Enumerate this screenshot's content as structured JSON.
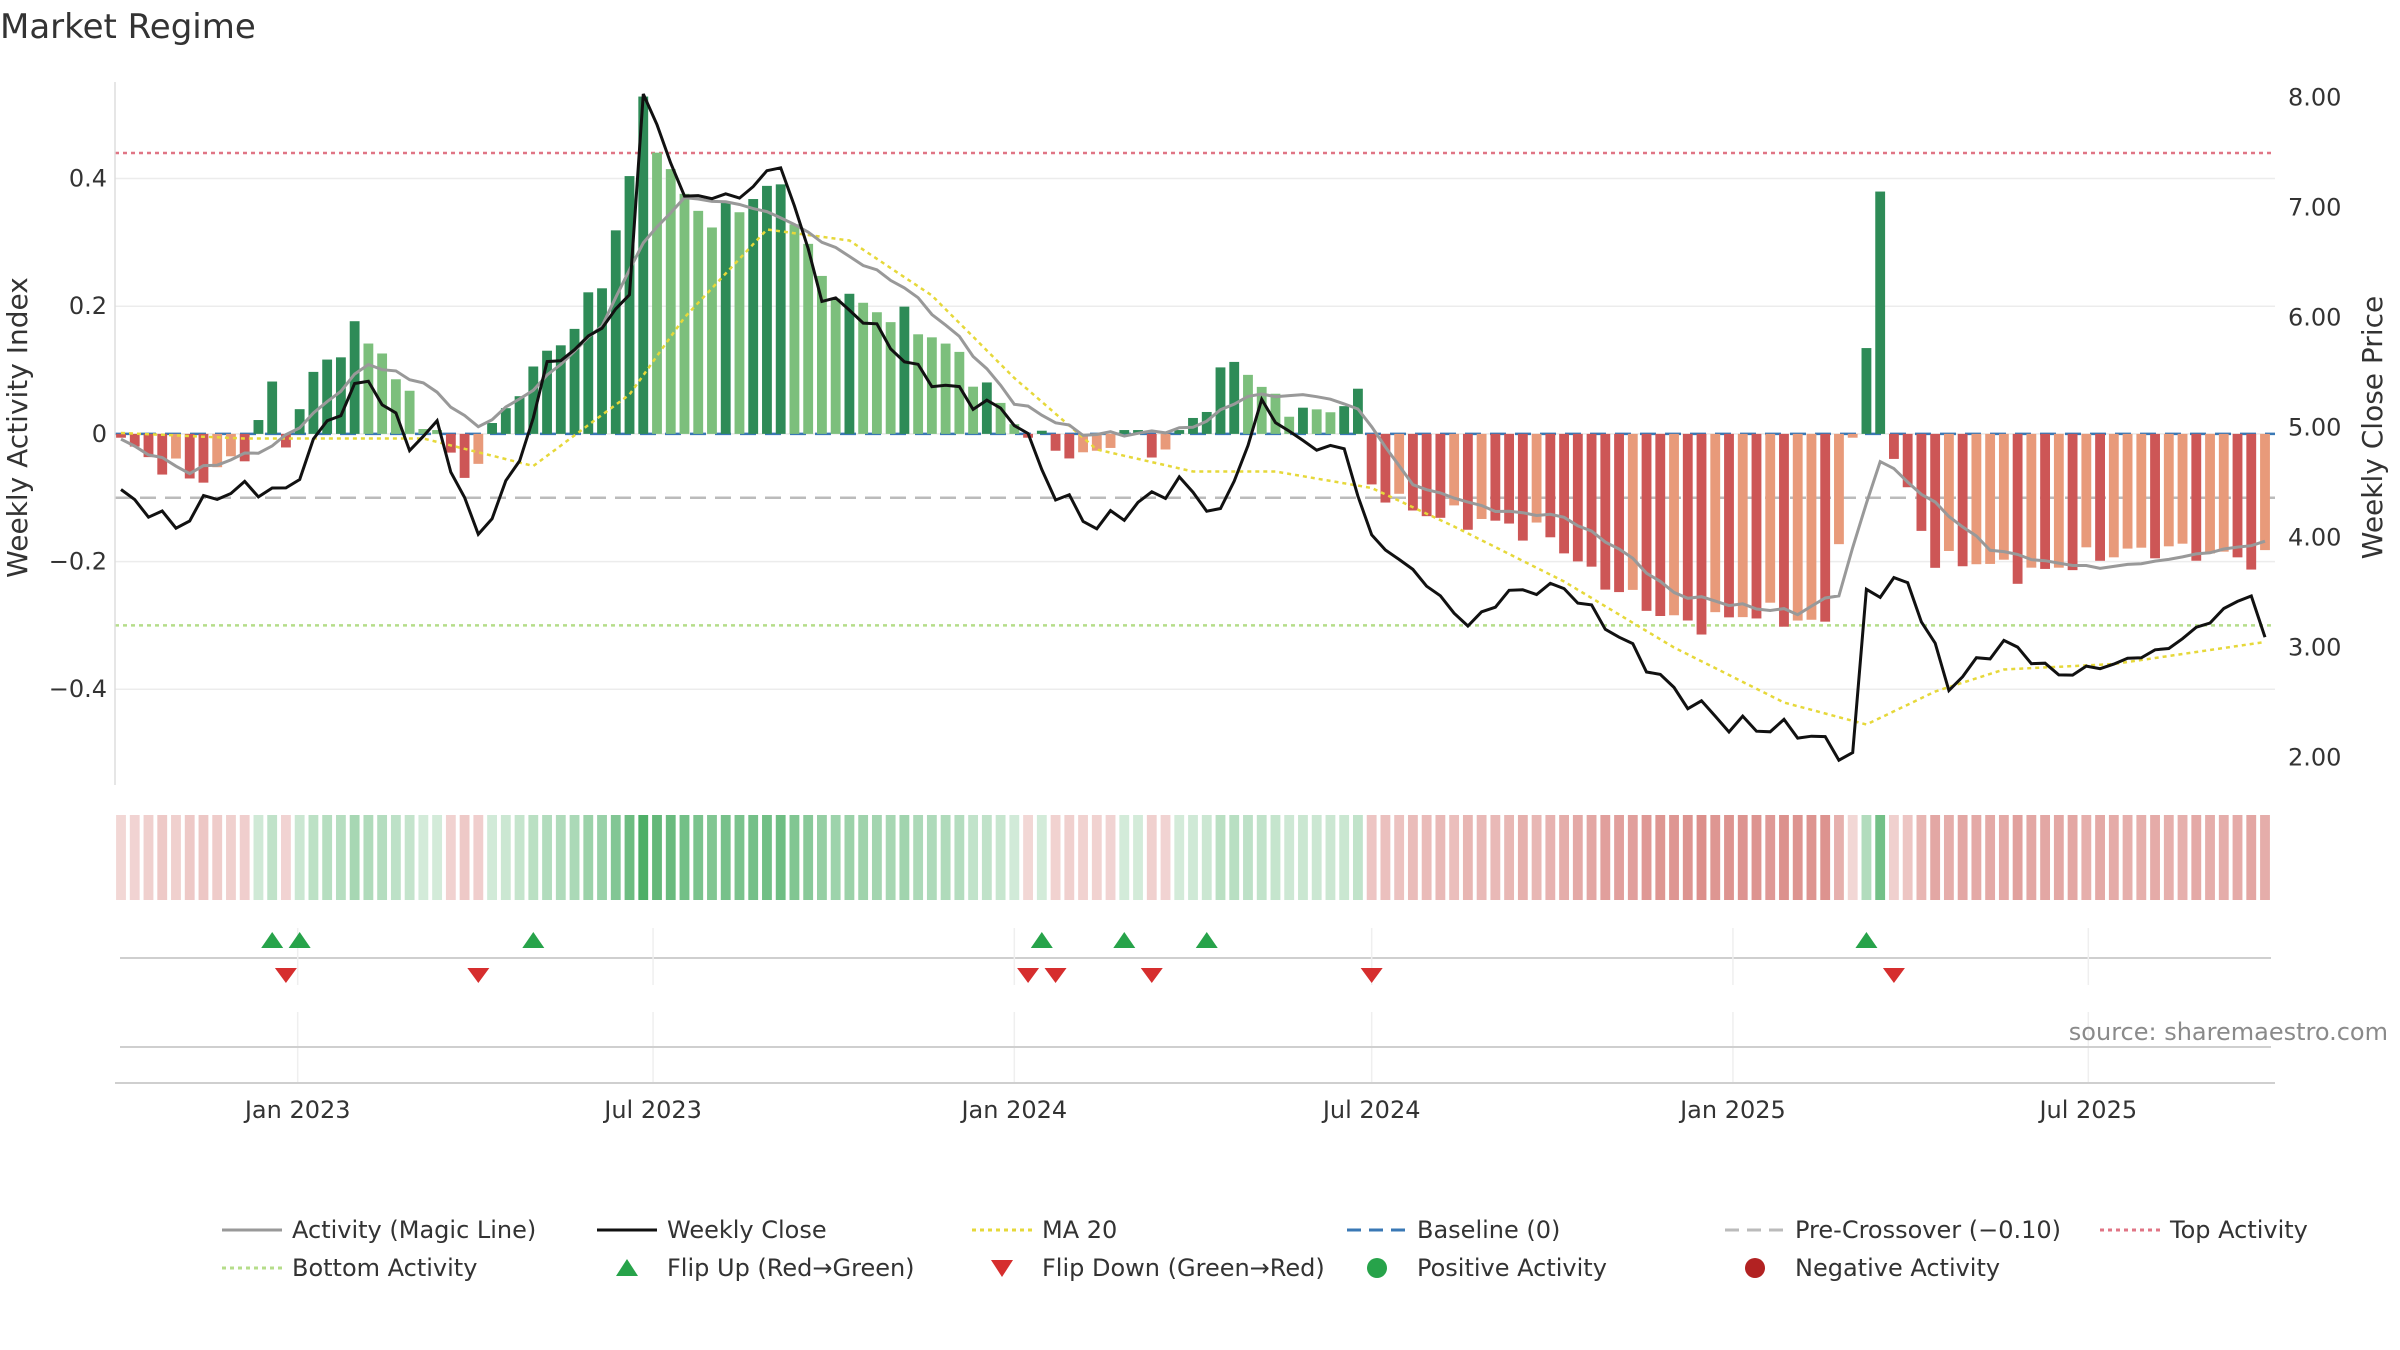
{
  "chart_data": {
    "type": "bar",
    "title": "Market Regime",
    "ylabel_left": "Weekly Activity Index",
    "ylabel_right": "Weekly Close Price",
    "ylim_left": [
      -0.55,
      0.57
    ],
    "ylim_right": [
      1.75,
      8.25
    ],
    "yticks_left": [
      0.4,
      0.2,
      0,
      -0.2,
      -0.4
    ],
    "yticks_left_labels": [
      "0.4",
      "0.2",
      "0",
      "−0.2",
      "−0.4"
    ],
    "yticks_right": [
      8.0,
      7.0,
      6.0,
      5.0,
      4.0,
      3.0,
      2.0
    ],
    "yticks_right_labels": [
      "8.00",
      "7.00",
      "6.00",
      "5.00",
      "4.00",
      "3.00",
      "2.00"
    ],
    "x_start": "2022-10-03",
    "x_end": "2025-09-29",
    "xticks": [
      "2023-01-01",
      "2023-07-01",
      "2024-01-01",
      "2024-07-01",
      "2025-01-01",
      "2025-07-01"
    ],
    "xtick_labels": [
      "Jan 2023",
      "Jul 2023",
      "Jan 2024",
      "Jul 2024",
      "Jan 2025",
      "Jul 2025"
    ],
    "reference_lines": {
      "top_activity": 0.44,
      "bottom_activity": -0.3,
      "pre_crossover": -0.1,
      "baseline": 0
    },
    "activity_keypoints": [
      [
        "2022-10-03",
        -0.01
      ],
      [
        "2022-10-24",
        -0.05
      ],
      [
        "2022-11-14",
        -0.07
      ],
      [
        "2022-12-05",
        -0.03
      ],
      [
        "2022-12-19",
        0.07
      ],
      [
        "2022-12-26",
        -0.01
      ],
      [
        "2023-01-09",
        0.09
      ],
      [
        "2023-01-30",
        0.16
      ],
      [
        "2023-02-13",
        0.13
      ],
      [
        "2023-02-27",
        0.05
      ],
      [
        "2023-03-13",
        0.0
      ],
      [
        "2023-03-27",
        -0.07
      ],
      [
        "2023-04-17",
        0.04
      ],
      [
        "2023-05-01",
        0.1
      ],
      [
        "2023-05-22",
        0.17
      ],
      [
        "2023-06-05",
        0.24
      ],
      [
        "2023-06-19",
        0.4
      ],
      [
        "2023-06-26",
        0.52
      ],
      [
        "2023-07-10",
        0.4
      ],
      [
        "2023-07-31",
        0.33
      ],
      [
        "2023-08-14",
        0.36
      ],
      [
        "2023-09-04",
        0.39
      ],
      [
        "2023-09-25",
        0.24
      ],
      [
        "2023-10-16",
        0.2
      ],
      [
        "2023-11-06",
        0.18
      ],
      [
        "2023-11-27",
        0.14
      ],
      [
        "2023-12-18",
        0.07
      ],
      [
        "2024-01-01",
        0.02
      ],
      [
        "2024-01-15",
        -0.01
      ],
      [
        "2024-02-05",
        -0.04
      ],
      [
        "2024-02-26",
        0.0
      ],
      [
        "2024-03-18",
        -0.03
      ],
      [
        "2024-04-08",
        0.05
      ],
      [
        "2024-04-22",
        0.12
      ],
      [
        "2024-05-13",
        0.05
      ],
      [
        "2024-06-03",
        0.03
      ],
      [
        "2024-06-24",
        0.06
      ],
      [
        "2024-07-01",
        -0.08
      ],
      [
        "2024-07-22",
        -0.12
      ],
      [
        "2024-08-12",
        -0.13
      ],
      [
        "2024-09-02",
        -0.14
      ],
      [
        "2024-09-30",
        -0.16
      ],
      [
        "2024-10-21",
        -0.22
      ],
      [
        "2024-11-18",
        -0.27
      ],
      [
        "2024-12-09",
        -0.3
      ],
      [
        "2025-01-13",
        -0.28
      ],
      [
        "2025-02-17",
        -0.3
      ],
      [
        "2025-03-10",
        0.13
      ],
      [
        "2025-03-17",
        0.39
      ],
      [
        "2025-03-24",
        -0.04
      ],
      [
        "2025-04-14",
        -0.2
      ],
      [
        "2025-05-05",
        -0.2
      ],
      [
        "2025-06-02",
        -0.22
      ],
      [
        "2025-07-07",
        -0.19
      ],
      [
        "2025-08-11",
        -0.18
      ],
      [
        "2025-09-29",
        -0.2
      ]
    ],
    "magic_keypoints": [
      [
        "2022-10-03",
        -0.01
      ],
      [
        "2022-11-07",
        -0.06
      ],
      [
        "2022-12-19",
        -0.02
      ],
      [
        "2023-01-09",
        0.03
      ],
      [
        "2023-02-06",
        0.11
      ],
      [
        "2023-03-06",
        0.08
      ],
      [
        "2023-04-03",
        0.01
      ],
      [
        "2023-05-01",
        0.07
      ],
      [
        "2023-06-05",
        0.17
      ],
      [
        "2023-06-26",
        0.3
      ],
      [
        "2023-07-17",
        0.37
      ],
      [
        "2023-08-14",
        0.36
      ],
      [
        "2023-09-04",
        0.34
      ],
      [
        "2023-10-02",
        0.29
      ],
      [
        "2023-11-06",
        0.23
      ],
      [
        "2023-12-04",
        0.15
      ],
      [
        "2024-01-01",
        0.05
      ],
      [
        "2024-02-05",
        0.0
      ],
      [
        "2024-03-04",
        0.0
      ],
      [
        "2024-04-01",
        0.01
      ],
      [
        "2024-04-29",
        0.06
      ],
      [
        "2024-06-03",
        0.06
      ],
      [
        "2024-06-24",
        0.04
      ],
      [
        "2024-07-22",
        -0.08
      ],
      [
        "2024-09-02",
        -0.12
      ],
      [
        "2024-10-07",
        -0.13
      ],
      [
        "2024-11-04",
        -0.18
      ],
      [
        "2024-12-02",
        -0.25
      ],
      [
        "2025-01-06",
        -0.27
      ],
      [
        "2025-02-03",
        -0.28
      ],
      [
        "2025-02-24",
        -0.25
      ],
      [
        "2025-03-17",
        -0.04
      ],
      [
        "2025-04-14",
        -0.11
      ],
      [
        "2025-05-12",
        -0.18
      ],
      [
        "2025-06-09",
        -0.2
      ],
      [
        "2025-07-07",
        -0.21
      ],
      [
        "2025-08-04",
        -0.2
      ],
      [
        "2025-09-29",
        -0.17
      ]
    ],
    "close_keypoints": [
      [
        "2022-10-03",
        4.4
      ],
      [
        "2022-10-31",
        4.1
      ],
      [
        "2022-11-21",
        4.4
      ],
      [
        "2022-12-12",
        4.45
      ],
      [
        "2022-12-26",
        4.4
      ],
      [
        "2023-01-16",
        5.05
      ],
      [
        "2023-02-06",
        5.45
      ],
      [
        "2023-02-27",
        4.85
      ],
      [
        "2023-03-13",
        5.0
      ],
      [
        "2023-04-03",
        4.0
      ],
      [
        "2023-04-24",
        4.7
      ],
      [
        "2023-05-08",
        5.55
      ],
      [
        "2023-05-29",
        5.8
      ],
      [
        "2023-06-19",
        6.2
      ],
      [
        "2023-06-26",
        8.05
      ],
      [
        "2023-07-17",
        7.1
      ],
      [
        "2023-08-14",
        7.1
      ],
      [
        "2023-09-04",
        7.4
      ],
      [
        "2023-09-25",
        6.2
      ],
      [
        "2023-10-16",
        6.0
      ],
      [
        "2023-11-13",
        5.5
      ],
      [
        "2023-12-11",
        5.25
      ],
      [
        "2024-01-01",
        5.1
      ],
      [
        "2024-01-22",
        4.4
      ],
      [
        "2024-02-12",
        4.1
      ],
      [
        "2024-03-04",
        4.3
      ],
      [
        "2024-03-25",
        4.5
      ],
      [
        "2024-04-15",
        4.2
      ],
      [
        "2024-05-06",
        5.2
      ],
      [
        "2024-05-27",
        4.85
      ],
      [
        "2024-06-17",
        4.8
      ],
      [
        "2024-07-01",
        4.0
      ],
      [
        "2024-07-22",
        3.7
      ],
      [
        "2024-08-19",
        3.2
      ],
      [
        "2024-09-09",
        3.5
      ],
      [
        "2024-10-07",
        3.55
      ],
      [
        "2024-11-04",
        3.1
      ],
      [
        "2024-12-02",
        2.6
      ],
      [
        "2024-12-30",
        2.3
      ],
      [
        "2025-02-03",
        2.25
      ],
      [
        "2025-03-03",
        2.0
      ],
      [
        "2025-03-10",
        3.5
      ],
      [
        "2025-03-31",
        3.6
      ],
      [
        "2025-04-21",
        2.65
      ],
      [
        "2025-05-19",
        3.05
      ],
      [
        "2025-06-16",
        2.75
      ],
      [
        "2025-07-14",
        2.85
      ],
      [
        "2025-08-11",
        3.0
      ],
      [
        "2025-09-22",
        3.5
      ],
      [
        "2025-09-29",
        3.05
      ]
    ],
    "ma20_keypoints": [
      [
        "2022-10-03",
        4.95
      ],
      [
        "2022-12-05",
        4.9
      ],
      [
        "2023-03-06",
        4.9
      ],
      [
        "2023-05-01",
        4.65
      ],
      [
        "2023-06-19",
        5.3
      ],
      [
        "2023-07-17",
        6.0
      ],
      [
        "2023-08-28",
        6.8
      ],
      [
        "2023-10-09",
        6.7
      ],
      [
        "2023-11-20",
        6.2
      ],
      [
        "2024-01-01",
        5.45
      ],
      [
        "2024-02-12",
        4.8
      ],
      [
        "2024-04-01",
        4.6
      ],
      [
        "2024-05-13",
        4.6
      ],
      [
        "2024-07-01",
        4.45
      ],
      [
        "2024-08-12",
        4.1
      ],
      [
        "2024-10-07",
        3.6
      ],
      [
        "2024-12-02",
        3.0
      ],
      [
        "2025-01-27",
        2.5
      ],
      [
        "2025-03-10",
        2.3
      ],
      [
        "2025-04-14",
        2.6
      ],
      [
        "2025-05-19",
        2.8
      ],
      [
        "2025-07-14",
        2.85
      ],
      [
        "2025-09-29",
        3.05
      ]
    ],
    "flip_up_dates": [
      "2022-12-19",
      "2023-01-02",
      "2023-05-01",
      "2024-01-15",
      "2024-02-26",
      "2024-04-08",
      "2025-03-10"
    ],
    "flip_down_dates": [
      "2022-12-26",
      "2023-04-03",
      "2024-01-08",
      "2024-01-22",
      "2024-03-11",
      "2024-07-01",
      "2025-03-24"
    ],
    "colors": {
      "pos_dark": "#2e8b57",
      "pos_light": "#7cbf7c",
      "neg_dark": "#cd5656",
      "neg_light": "#e89a7a",
      "magic": "#999999",
      "close": "#111111",
      "ma20": "#e6d83a",
      "baseline": "#3a78b5",
      "pre_crossover": "#bbbbbb",
      "top": "#e07585",
      "bottom": "#b5dd8a",
      "flip_up": "#27a34a",
      "flip_down": "#d62e2e"
    },
    "legend": [
      {
        "label": "Activity (Magic Line)",
        "kind": "line",
        "color": "#999999",
        "dash": ""
      },
      {
        "label": "Weekly Close",
        "kind": "line",
        "color": "#111111",
        "dash": ""
      },
      {
        "label": "MA 20",
        "kind": "line",
        "color": "#e6d83a",
        "dash": "4,4"
      },
      {
        "label": "Baseline (0)",
        "kind": "line",
        "color": "#3a78b5",
        "dash": "14,8"
      },
      {
        "label": "Pre-Crossover (−0.10)",
        "kind": "line",
        "color": "#bbbbbb",
        "dash": "14,8"
      },
      {
        "label": "Top Activity",
        "kind": "line",
        "color": "#e07585",
        "dash": "4,4"
      },
      {
        "label": "Bottom Activity",
        "kind": "line",
        "color": "#b5dd8a",
        "dash": "4,4"
      },
      {
        "label": "Flip Up (Red→Green)",
        "kind": "tri-up",
        "color": "#27a34a",
        "dash": ""
      },
      {
        "label": "Flip Down (Green→Red)",
        "kind": "tri-down",
        "color": "#d62e2e",
        "dash": ""
      },
      {
        "label": "Positive Activity",
        "kind": "dot",
        "color": "#27a34a",
        "dash": ""
      },
      {
        "label": "Negative Activity",
        "kind": "dot",
        "color": "#b22222",
        "dash": ""
      }
    ],
    "source": "source: sharemaestro.com"
  }
}
